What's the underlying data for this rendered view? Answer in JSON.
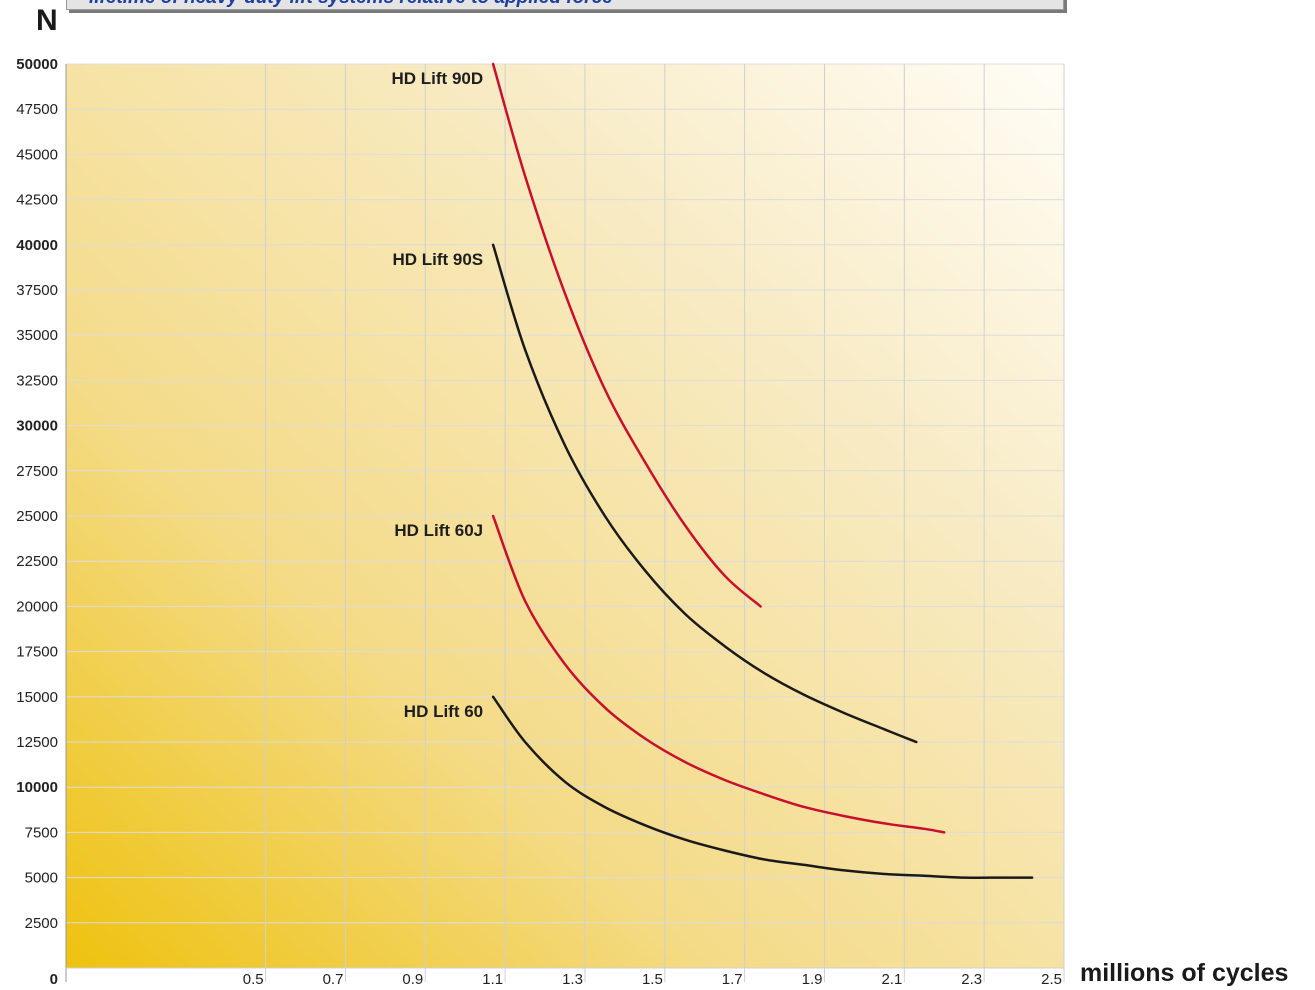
{
  "chart_data": {
    "type": "line",
    "title": "lifetime of heavy-duty lift systems relative to applied force",
    "ylabel": "N",
    "xlabel": "millions of cycles",
    "xlim": [
      0,
      2.5
    ],
    "ylim": [
      0,
      50000
    ],
    "grid": true,
    "x_ticks": [
      {
        "value": 0.5,
        "label": "0.5"
      },
      {
        "value": 0.7,
        "label": "0.7"
      },
      {
        "value": 0.9,
        "label": "0.9"
      },
      {
        "value": 1.1,
        "label": "1.1"
      },
      {
        "value": 1.3,
        "label": "1.3"
      },
      {
        "value": 1.5,
        "label": "1.5"
      },
      {
        "value": 1.7,
        "label": "1.7"
      },
      {
        "value": 1.9,
        "label": "1.9"
      },
      {
        "value": 2.1,
        "label": "2.1"
      },
      {
        "value": 2.3,
        "label": "2.3"
      },
      {
        "value": 2.5,
        "label": "2.5"
      }
    ],
    "x_origin_label": "0",
    "y_ticks": [
      {
        "value": 50000,
        "label": "50000",
        "bold": true
      },
      {
        "value": 47500,
        "label": "47500"
      },
      {
        "value": 45000,
        "label": "45000"
      },
      {
        "value": 42500,
        "label": "42500"
      },
      {
        "value": 40000,
        "label": "40000",
        "bold": true
      },
      {
        "value": 37500,
        "label": "37500"
      },
      {
        "value": 35000,
        "label": "35000"
      },
      {
        "value": 32500,
        "label": "32500"
      },
      {
        "value": 30000,
        "label": "30000",
        "bold": true
      },
      {
        "value": 27500,
        "label": "27500"
      },
      {
        "value": 25000,
        "label": "25000"
      },
      {
        "value": 22500,
        "label": "22500"
      },
      {
        "value": 20000,
        "label": "20000"
      },
      {
        "value": 17500,
        "label": "17500"
      },
      {
        "value": 15000,
        "label": "15000"
      },
      {
        "value": 12500,
        "label": "12500"
      },
      {
        "value": 10000,
        "label": "10000",
        "bold": true
      },
      {
        "value": 7500,
        "label": "7500"
      },
      {
        "value": 5000,
        "label": "5000"
      },
      {
        "value": 2500,
        "label": "2500"
      }
    ],
    "series": [
      {
        "name": "HD Lift 90D",
        "color": "#c8102e",
        "x": [
          1.07,
          1.15,
          1.25,
          1.35,
          1.45,
          1.55,
          1.65,
          1.74
        ],
        "y": [
          50000,
          43800,
          37300,
          32000,
          28000,
          24500,
          21700,
          20000
        ]
      },
      {
        "name": "HD Lift 90S",
        "color": "#1a1a1a",
        "x": [
          1.07,
          1.15,
          1.25,
          1.35,
          1.45,
          1.55,
          1.65,
          1.75,
          1.85,
          1.95,
          2.05,
          2.13
        ],
        "y": [
          40000,
          34200,
          28900,
          25000,
          22000,
          19600,
          17800,
          16300,
          15100,
          14100,
          13200,
          12500
        ]
      },
      {
        "name": "HD Lift 60J",
        "color": "#c8102e",
        "x": [
          1.07,
          1.15,
          1.25,
          1.35,
          1.45,
          1.55,
          1.65,
          1.75,
          1.85,
          1.95,
          2.05,
          2.15,
          2.2
        ],
        "y": [
          25000,
          20300,
          16800,
          14400,
          12700,
          11400,
          10400,
          9600,
          8900,
          8400,
          8000,
          7700,
          7500
        ]
      },
      {
        "name": "HD Lift 60",
        "color": "#1a1a1a",
        "x": [
          1.07,
          1.15,
          1.25,
          1.35,
          1.45,
          1.55,
          1.65,
          1.75,
          1.85,
          1.95,
          2.05,
          2.15,
          2.25,
          2.35,
          2.42
        ],
        "y": [
          15000,
          12500,
          10300,
          8900,
          7900,
          7100,
          6500,
          6000,
          5700,
          5400,
          5200,
          5100,
          5000,
          5000,
          5000
        ]
      }
    ]
  }
}
